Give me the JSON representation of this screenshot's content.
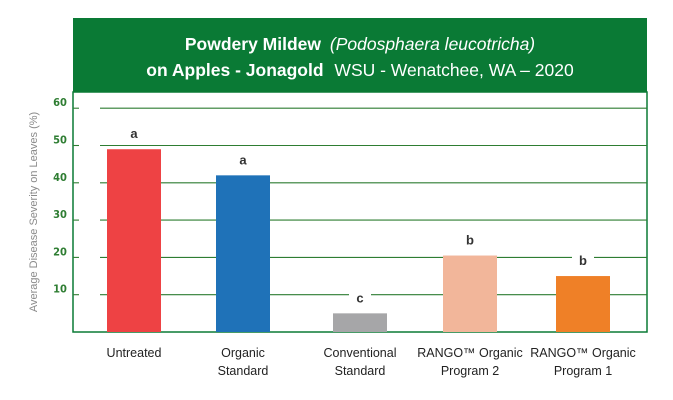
{
  "title": {
    "line1_bold": "Powdery Mildew",
    "line1_italic": "(Podosphaera leucotricha)",
    "line2_bold": "on Apples - Jonagold",
    "line2_normal": "WSU - Wenatchee, WA – 2020"
  },
  "colors": {
    "header_bg": "#0a7a35",
    "frame": "#0a7a35",
    "gridline": "#2e7d32",
    "tick_text": "#2e7d32"
  },
  "chart_data": {
    "type": "bar",
    "title": "Powdery Mildew (Podosphaera leucotricha) on Apples - Jonagold WSU - Wenatchee, WA – 2020",
    "xlabel": "",
    "ylabel": "Average Disease Severity on Leaves (%)",
    "ylim": [
      0,
      70
    ],
    "yticks": [
      10,
      20,
      30,
      40,
      50,
      60
    ],
    "grid": true,
    "categories": [
      [
        "Untreated"
      ],
      [
        "Organic",
        "Standard"
      ],
      [
        "Conventional",
        "Standard"
      ],
      [
        "RANGO™ Organic",
        "Program 2"
      ],
      [
        "RANGO™ Organic",
        "Program 1"
      ]
    ],
    "values": [
      49,
      42,
      5,
      20.5,
      15
    ],
    "significance": [
      "a",
      "a",
      "c",
      "b",
      "b"
    ],
    "bar_colors": [
      "#ee4244",
      "#1f72b8",
      "#a6a6a8",
      "#f2b69a",
      "#ef8027"
    ]
  }
}
